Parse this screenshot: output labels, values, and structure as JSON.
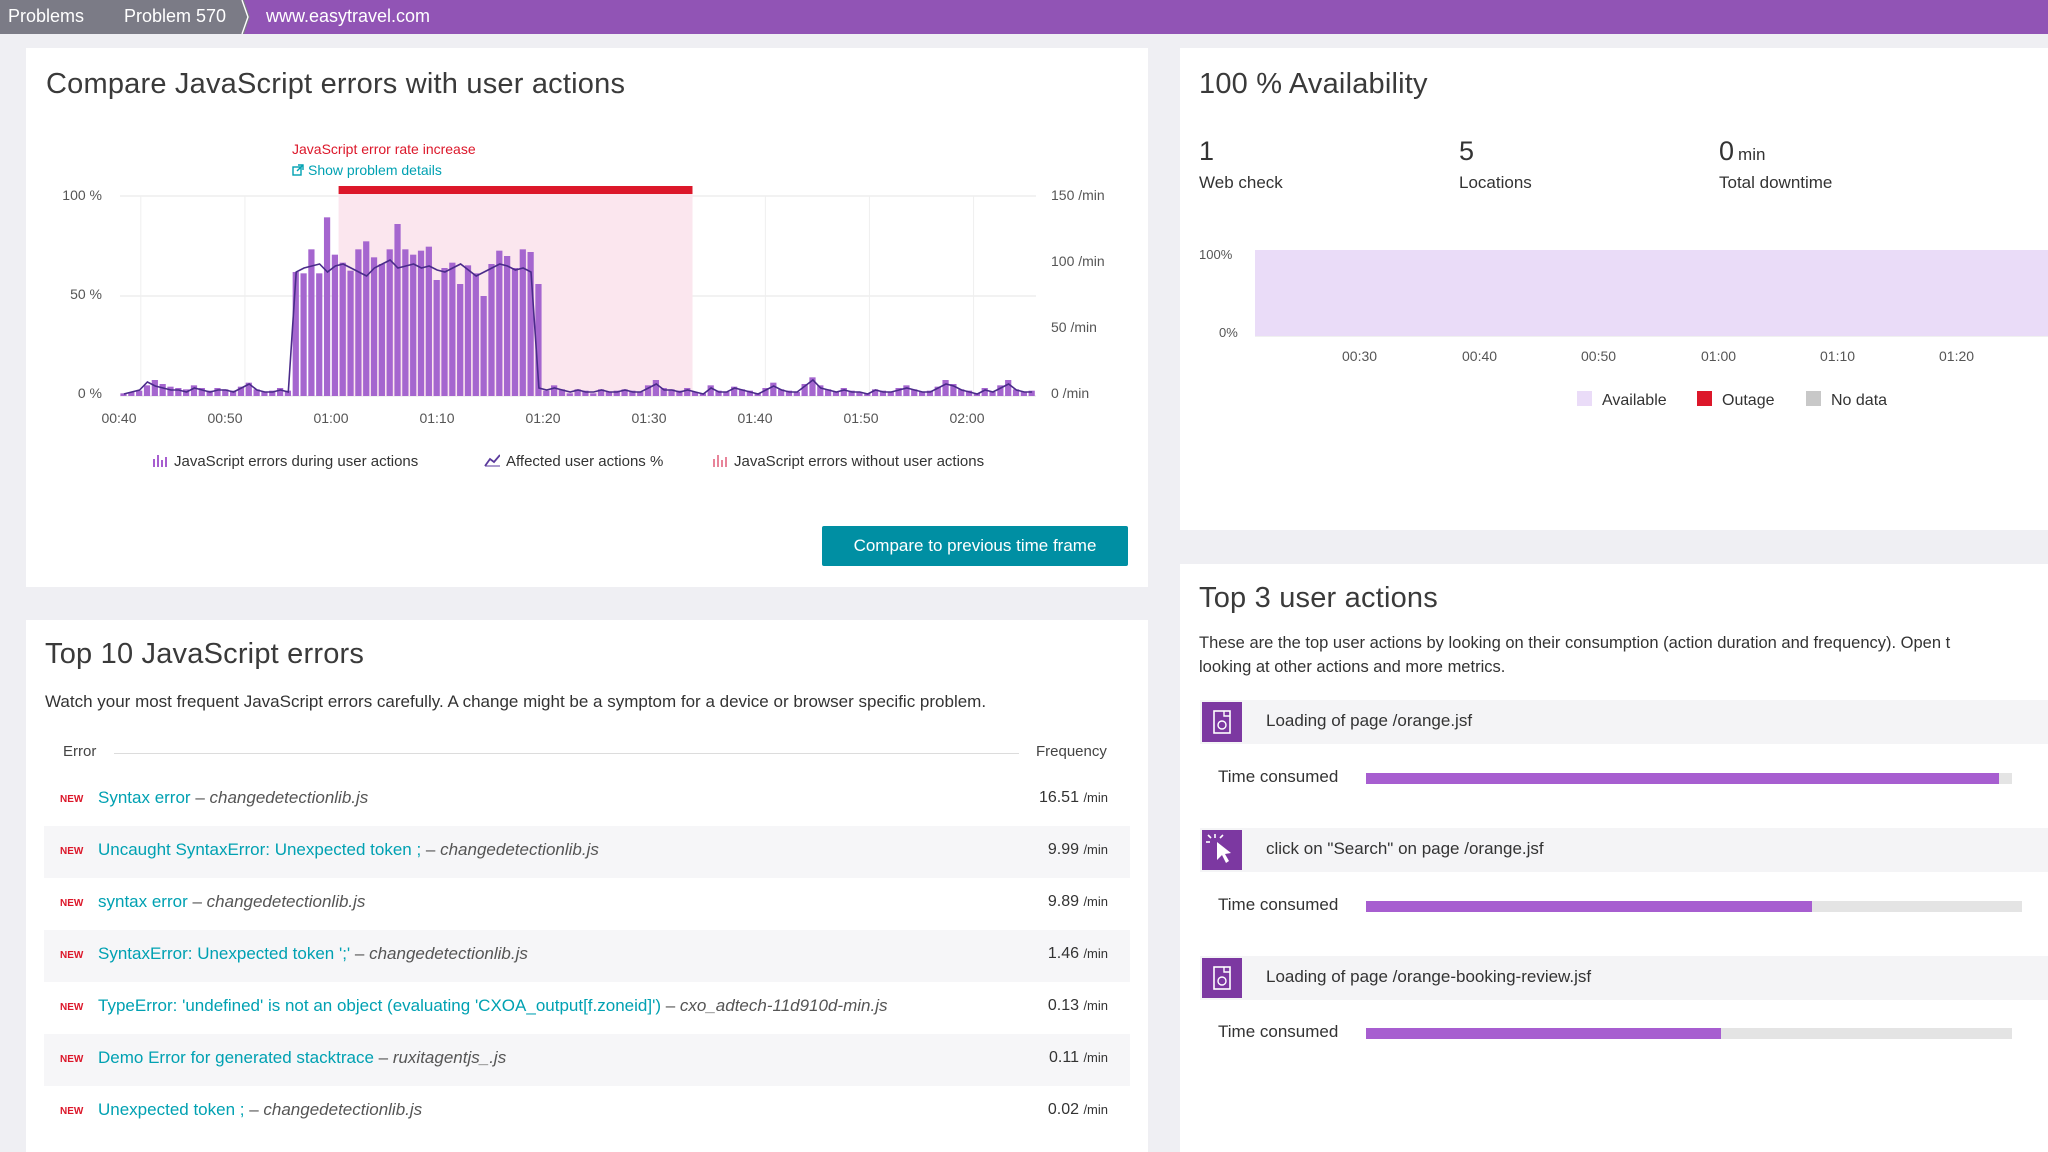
{
  "breadcrumb": {
    "items": [
      "Problems",
      "Problem 570",
      "www.easytravel.com"
    ]
  },
  "js_panel": {
    "title": "Compare JavaScript errors with user actions",
    "annotation": {
      "title": "JavaScript error rate increase",
      "link": "Show problem details"
    },
    "compare_button": "Compare to previous time frame"
  },
  "availability": {
    "title": "100 % Availability",
    "metrics": [
      {
        "value": "1",
        "unit": "",
        "label": "Web check"
      },
      {
        "value": "5",
        "unit": "",
        "label": "Locations"
      },
      {
        "value": "0",
        "unit": "min",
        "label": "Total downtime"
      }
    ]
  },
  "errors_panel": {
    "title": "Top 10 JavaScript errors",
    "description": "Watch your most frequent JavaScript errors carefully. A change might be a symptom for a device or browser specific problem.",
    "col_error": "Error",
    "col_frequency": "Frequency",
    "new_label": "NEW",
    "rows": [
      {
        "error": "Syntax error",
        "file": "changedetectionlib.js",
        "freq": "16.51",
        "unit": "/min"
      },
      {
        "error": "Uncaught SyntaxError: Unexpected token ;",
        "file": "changedetectionlib.js",
        "freq": "9.99",
        "unit": "/min"
      },
      {
        "error": "syntax error",
        "file": "changedetectionlib.js",
        "freq": "9.89",
        "unit": "/min"
      },
      {
        "error": "SyntaxError: Unexpected token ';'",
        "file": "changedetectionlib.js",
        "freq": "1.46",
        "unit": "/min"
      },
      {
        "error": "TypeError: 'undefined' is not an object (evaluating 'CXOA_output[f.zoneid]')",
        "file": "cxo_adtech-11d910d-min.js",
        "freq": "0.13",
        "unit": "/min"
      },
      {
        "error": "Demo Error for generated stacktrace",
        "file": "ruxitagentjs_.js",
        "freq": "0.11",
        "unit": "/min"
      },
      {
        "error": "Unexpected token ;",
        "file": "changedetectionlib.js",
        "freq": "0.02",
        "unit": "/min"
      }
    ]
  },
  "actions_panel": {
    "title": "Top 3 user actions",
    "description_line1": "These are the top user actions by looking on their consumption (action duration and frequency). Open t",
    "description_line2": "looking at other actions and more metrics.",
    "time_label": "Time consumed",
    "items": [
      {
        "name": "Loading of page /orange.jsf",
        "icon": "page-load-icon",
        "consumed": 0.98
      },
      {
        "name": "click on \"Search\" on page /orange.jsf",
        "icon": "click-icon",
        "consumed": 0.68
      },
      {
        "name": "Loading of page /orange-booking-review.jsf",
        "icon": "page-load-icon",
        "consumed": 0.55
      }
    ]
  },
  "colors": {
    "brand": "#9154b5",
    "teal": "#00a1b2",
    "error_red": "#dc172a",
    "bar": "#a75ed0",
    "available": "#eadcf8",
    "outage": "#dc172a",
    "nodata": "#c8c8c8"
  },
  "chart_data": [
    {
      "type": "bar",
      "title": "",
      "x_ticks": [
        "00:40",
        "00:50",
        "01:00",
        "01:10",
        "01:20",
        "01:30",
        "01:40",
        "01:50",
        "02:00"
      ],
      "y_left_ticks": [
        "100 %",
        "50 %",
        "0 %"
      ],
      "y_right_ticks": [
        "150 /min",
        "100 /min",
        "50 /min",
        "0 /min"
      ],
      "y_left_lim": [
        0,
        100
      ],
      "y_right_lim": [
        0,
        150
      ],
      "x_range": [
        "00:38",
        "02:06"
      ],
      "highlight_range": [
        "00:59",
        "01:33"
      ],
      "legend": [
        "JavaScript errors during user actions",
        "Affected user actions %",
        "JavaScript errors without user actions"
      ],
      "series": [
        {
          "name": "JavaScript errors during user actions",
          "unit": "/min",
          "values": [
            2,
            3,
            4,
            8,
            12,
            9,
            7,
            6,
            5,
            8,
            6,
            4,
            6,
            5,
            4,
            7,
            10,
            5,
            3,
            4,
            6,
            4,
            93,
            92,
            110,
            92,
            134,
            106,
            100,
            94,
            110,
            116,
            104,
            99,
            110,
            129,
            110,
            106,
            109,
            112,
            87,
            96,
            100,
            84,
            98,
            92,
            75,
            99,
            109,
            105,
            96,
            110,
            108,
            84,
            4,
            8,
            5,
            2,
            5,
            4,
            2,
            5,
            3,
            4,
            5,
            4,
            3,
            8,
            12,
            6,
            5,
            4,
            6,
            3,
            2,
            8,
            4,
            3,
            7,
            5,
            4,
            2,
            6,
            10,
            5,
            4,
            3,
            9,
            14,
            8,
            5,
            3,
            6,
            4,
            3,
            2,
            5,
            4,
            3,
            6,
            8,
            5,
            3,
            4,
            7,
            12,
            9,
            5,
            4,
            2,
            6,
            3,
            8,
            12,
            5,
            3,
            4
          ]
        },
        {
          "name": "Affected user actions %",
          "unit": "%",
          "values": [
            1,
            2,
            3,
            7,
            5,
            4,
            3,
            3,
            2,
            4,
            3,
            2,
            3,
            3,
            2,
            4,
            6,
            3,
            2,
            2,
            3,
            2,
            62,
            64,
            65,
            66,
            62,
            65,
            66,
            64,
            62,
            60,
            64,
            66,
            68,
            64,
            65,
            66,
            64,
            65,
            63,
            62,
            64,
            66,
            63,
            60,
            62,
            64,
            66,
            65,
            63,
            64,
            62,
            4,
            3,
            4,
            3,
            2,
            3,
            2,
            2,
            3,
            2,
            2,
            3,
            2,
            2,
            4,
            6,
            3,
            3,
            2,
            3,
            2,
            1,
            4,
            2,
            2,
            4,
            3,
            2,
            1,
            3,
            5,
            3,
            2,
            2,
            5,
            8,
            4,
            3,
            2,
            3,
            2,
            2,
            1,
            3,
            2,
            2,
            3,
            4,
            3,
            2,
            2,
            4,
            6,
            5,
            3,
            2,
            1,
            3,
            2,
            4,
            6,
            3,
            2,
            2
          ]
        },
        {
          "name": "JavaScript errors without user actions",
          "unit": "/min",
          "values": []
        }
      ]
    },
    {
      "type": "area",
      "title": "",
      "x_ticks": [
        "00:30",
        "00:40",
        "00:50",
        "01:00",
        "01:10",
        "01:20"
      ],
      "y_ticks": [
        "100%",
        "0%"
      ],
      "ylim": [
        0,
        100
      ],
      "legend": [
        "Available",
        "Outage",
        "No data"
      ],
      "series": [
        {
          "name": "Available",
          "values": [
            100,
            100,
            100,
            100,
            100,
            100
          ]
        }
      ]
    }
  ]
}
